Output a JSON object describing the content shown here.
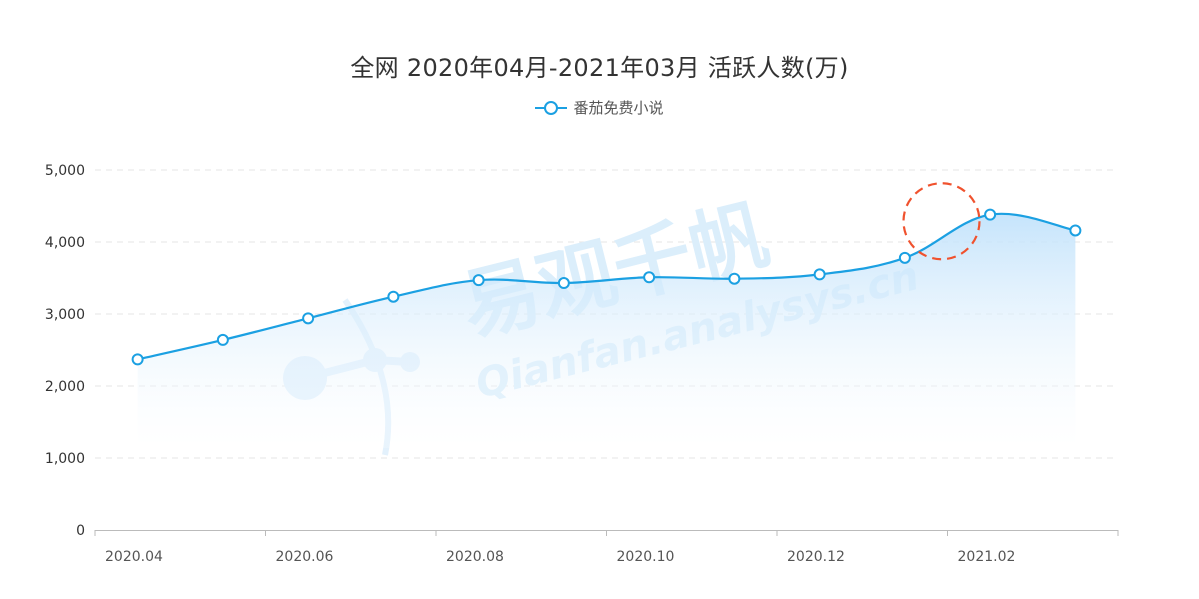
{
  "chart_data": {
    "type": "area",
    "title": "全网 2020年04月-2021年03月 活跃人数(万)",
    "xlabel": "",
    "ylabel": "",
    "ylim": [
      0,
      5000
    ],
    "yticks": [
      "0",
      "1,000",
      "2,000",
      "3,000",
      "4,000",
      "5,000"
    ],
    "ytick_values": [
      0,
      1000,
      2000,
      3000,
      4000,
      5000
    ],
    "categories": [
      "2020.04",
      "2020.05",
      "2020.06",
      "2020.07",
      "2020.08",
      "2020.09",
      "2020.10",
      "2020.11",
      "2020.12",
      "2021.01",
      "2021.02",
      "2021.03"
    ],
    "xtick_labels": [
      "2020.04",
      "2020.06",
      "2020.08",
      "2020.10",
      "2020.12",
      "2021.02"
    ],
    "series": [
      {
        "name": "番茄免费小说",
        "values": [
          2370,
          2640,
          2940,
          3240,
          3470,
          3430,
          3510,
          3490,
          3550,
          3780,
          4380,
          4160
        ]
      }
    ],
    "grid": true,
    "legend_position": "top-center",
    "colors": {
      "line": "#1ba0e2",
      "area_top": "#bfe1fb",
      "area_bottom": "#ffffff",
      "highlight_circle": "#f0522e",
      "grid": "#e6e6e6",
      "watermark": "#dbeefb"
    },
    "watermark": {
      "main": "易观千帆",
      "sub": "Qianfan.analysys.cn"
    }
  }
}
